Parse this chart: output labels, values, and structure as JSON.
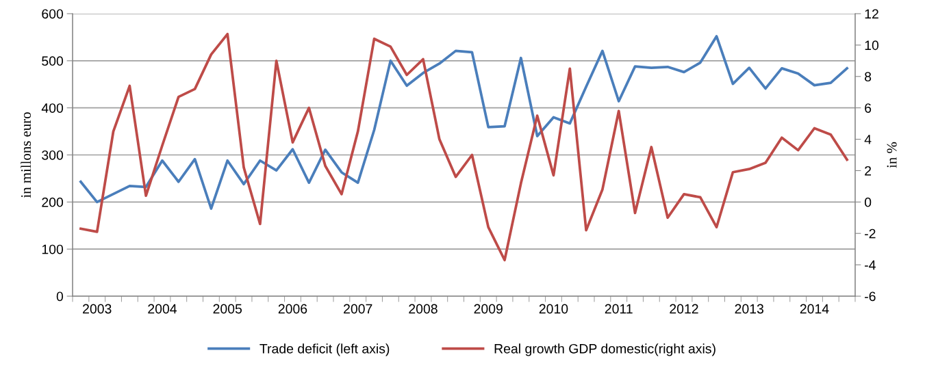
{
  "chart_data": {
    "type": "line",
    "categories": [
      null,
      "2003",
      null,
      null,
      null,
      "2004",
      null,
      null,
      null,
      "2005",
      null,
      null,
      null,
      "2006",
      null,
      null,
      null,
      "2007",
      null,
      null,
      null,
      "2008",
      null,
      null,
      null,
      "2009",
      null,
      null,
      null,
      "2010",
      null,
      null,
      null,
      "2011",
      null,
      null,
      null,
      "2012",
      null,
      null,
      null,
      "2013",
      null,
      null,
      null,
      "2014",
      null,
      null
    ],
    "series": [
      {
        "name": "Trade deficit (left axis)",
        "color": "#4a7ebb",
        "values": [
          243,
          200,
          217,
          234,
          232,
          288,
          243,
          291,
          186,
          288,
          238,
          288,
          267,
          312,
          241,
          311,
          263,
          241,
          353,
          500,
          447,
          474,
          494,
          521,
          518,
          359,
          361,
          506,
          340,
          380,
          367,
          445,
          521,
          414,
          488,
          485,
          487,
          476,
          496,
          552,
          451,
          485,
          441,
          484,
          473,
          448,
          453,
          484
        ]
      },
      {
        "name": "Real growth GDP domestic(right axis)",
        "color": "#be4b48",
        "axis": "y2",
        "values": [
          -1.7,
          -1.9,
          4.5,
          7.4,
          0.4,
          3.6,
          6.7,
          7.2,
          9.4,
          10.7,
          2.2,
          -1.4,
          9.0,
          3.8,
          6.0,
          2.3,
          0.5,
          4.5,
          10.4,
          9.9,
          8.1,
          9.1,
          4.0,
          1.6,
          3.0,
          -1.6,
          -3.7,
          1.2,
          5.5,
          1.7,
          8.5,
          -1.8,
          0.8,
          5.8,
          -0.7,
          3.5,
          -1.0,
          0.5,
          0.3,
          -1.6,
          1.9,
          2.1,
          2.5,
          4.1,
          3.3,
          4.7,
          4.3,
          2.7
        ]
      }
    ],
    "ylabel": "in millons euro",
    "y2label": "in %",
    "ylim": [
      0,
      600
    ],
    "yticks": [
      0,
      100,
      200,
      300,
      400,
      500,
      600
    ],
    "y2lim": [
      -6,
      12
    ],
    "y2ticks": [
      -6,
      -4,
      -2,
      0,
      2,
      4,
      6,
      8,
      10,
      12
    ],
    "grid": "y",
    "legend": "bottom",
    "marker": "none",
    "line_style": "solid"
  }
}
